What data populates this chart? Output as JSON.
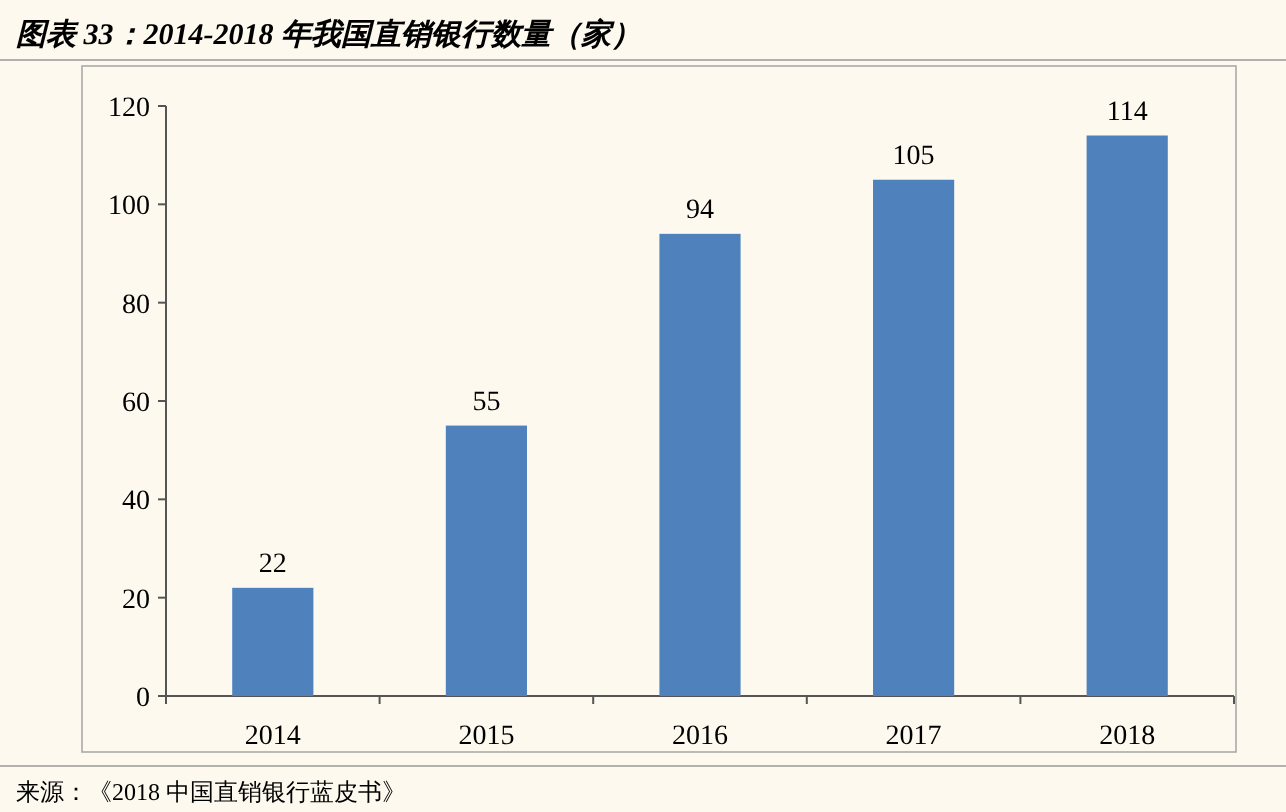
{
  "chart_data": {
    "type": "bar",
    "title": "图表 33：2014-2018 年我国直销银行数量（家）",
    "categories": [
      "2014",
      "2015",
      "2016",
      "2017",
      "2018"
    ],
    "values": [
      22,
      55,
      94,
      105,
      114
    ],
    "color": "#4f81bd",
    "ylim": [
      0,
      120
    ],
    "yticks": [
      0,
      20,
      40,
      60,
      80,
      100,
      120
    ],
    "grid": false,
    "data_labels": true,
    "annotations": [
      "来源：《2018 中国直销银行蓝皮书》"
    ]
  }
}
